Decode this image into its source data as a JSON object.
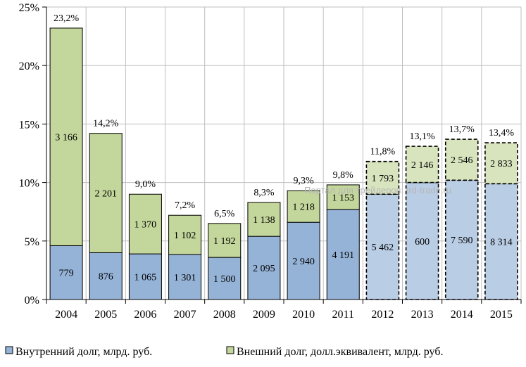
{
  "chart_data": {
    "type": "bar",
    "stacked": true,
    "categories": [
      "2004",
      "2005",
      "2006",
      "2007",
      "2008",
      "2009",
      "2010",
      "2011",
      "2012",
      "2013",
      "2014",
      "2015"
    ],
    "forecast_from_index": 8,
    "ylim": [
      0,
      25
    ],
    "yticks": [
      "0%",
      "5%",
      "10%",
      "15%",
      "20%",
      "25%"
    ],
    "grid": true,
    "legend_position": "bottom",
    "series": [
      {
        "name": "Внутренний долг, млрд. руб.",
        "color": "#95b3d7",
        "forecast_color": "#b9cde5",
        "pct_values": [
          4.6,
          4.0,
          3.9,
          3.85,
          3.6,
          5.4,
          6.6,
          7.7,
          9.0,
          10.0,
          10.2,
          9.9
        ],
        "labels": [
          "779",
          "876",
          "1 065",
          "1 301",
          "1 500",
          "2 095",
          "2 940",
          "4 191",
          "5 462",
          "600",
          "7 590",
          "8 314"
        ]
      },
      {
        "name": "Внешний долг, долл.эквивалент, млрд. руб.",
        "color": "#c3d69b",
        "forecast_color": "#d7e4bd",
        "pct_values": [
          18.6,
          10.2,
          5.1,
          3.35,
          2.9,
          2.9,
          2.7,
          2.1,
          2.8,
          3.1,
          3.5,
          3.5
        ],
        "labels": [
          "3 166",
          "2 201",
          "1 370",
          "1 102",
          "1 192",
          "1 138",
          "1 218",
          "1 153",
          "1 793",
          "2 146",
          "2 546",
          "2 833"
        ]
      }
    ],
    "totals": [
      "23,2%",
      "14,2%",
      "9,0%",
      "7,2%",
      "6,5%",
      "8,3%",
      "9,3%",
      "9,8%",
      "11,8%",
      "13,1%",
      "13,7%",
      "13,4%"
    ],
    "watermark": "Портал для трейдеров: trd-trade.ru"
  }
}
